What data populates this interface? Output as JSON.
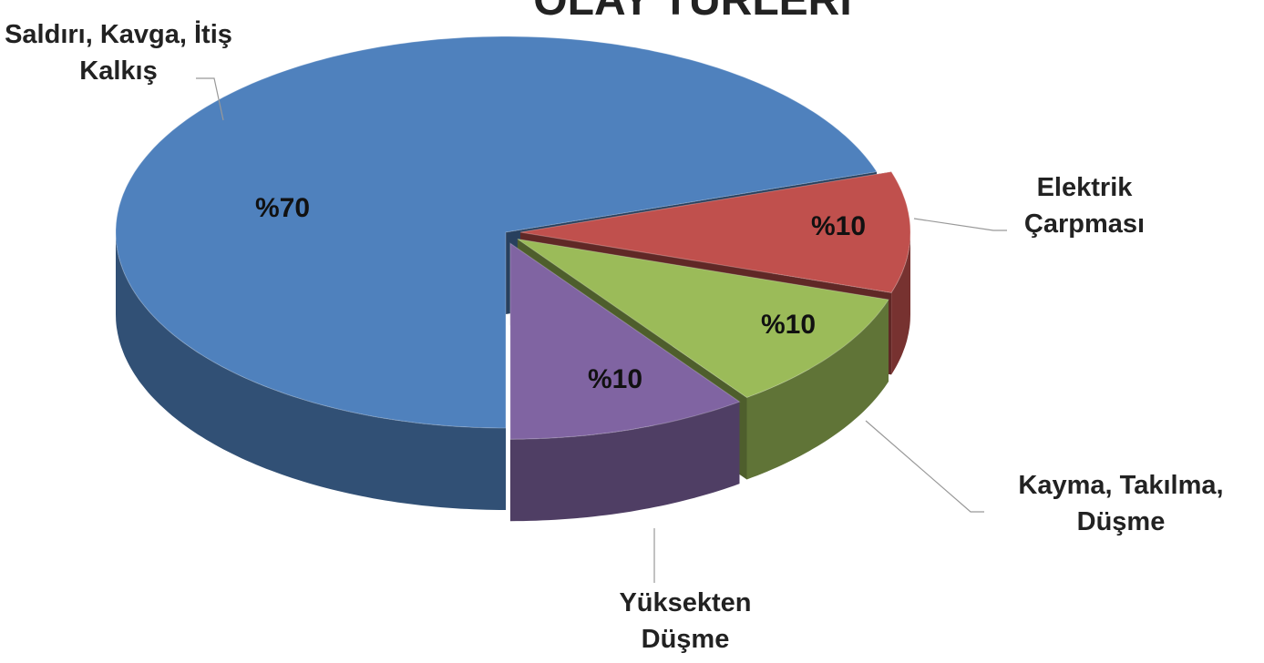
{
  "chart_data": {
    "type": "pie",
    "title": "OLAY TÜRLERİ",
    "categories": [
      "Saldırı, Kavga, İtiş Kalkış",
      "Elektrik Çarpması",
      "Kayma, Takılma, Düşme",
      "Yüksekten Düşme"
    ],
    "values": [
      70,
      10,
      10,
      10
    ],
    "value_labels": [
      "%70",
      "%10",
      "%10",
      "%10"
    ],
    "colors": [
      "#4f81bd",
      "#c0504d",
      "#9bbb59",
      "#8064a2"
    ]
  }
}
